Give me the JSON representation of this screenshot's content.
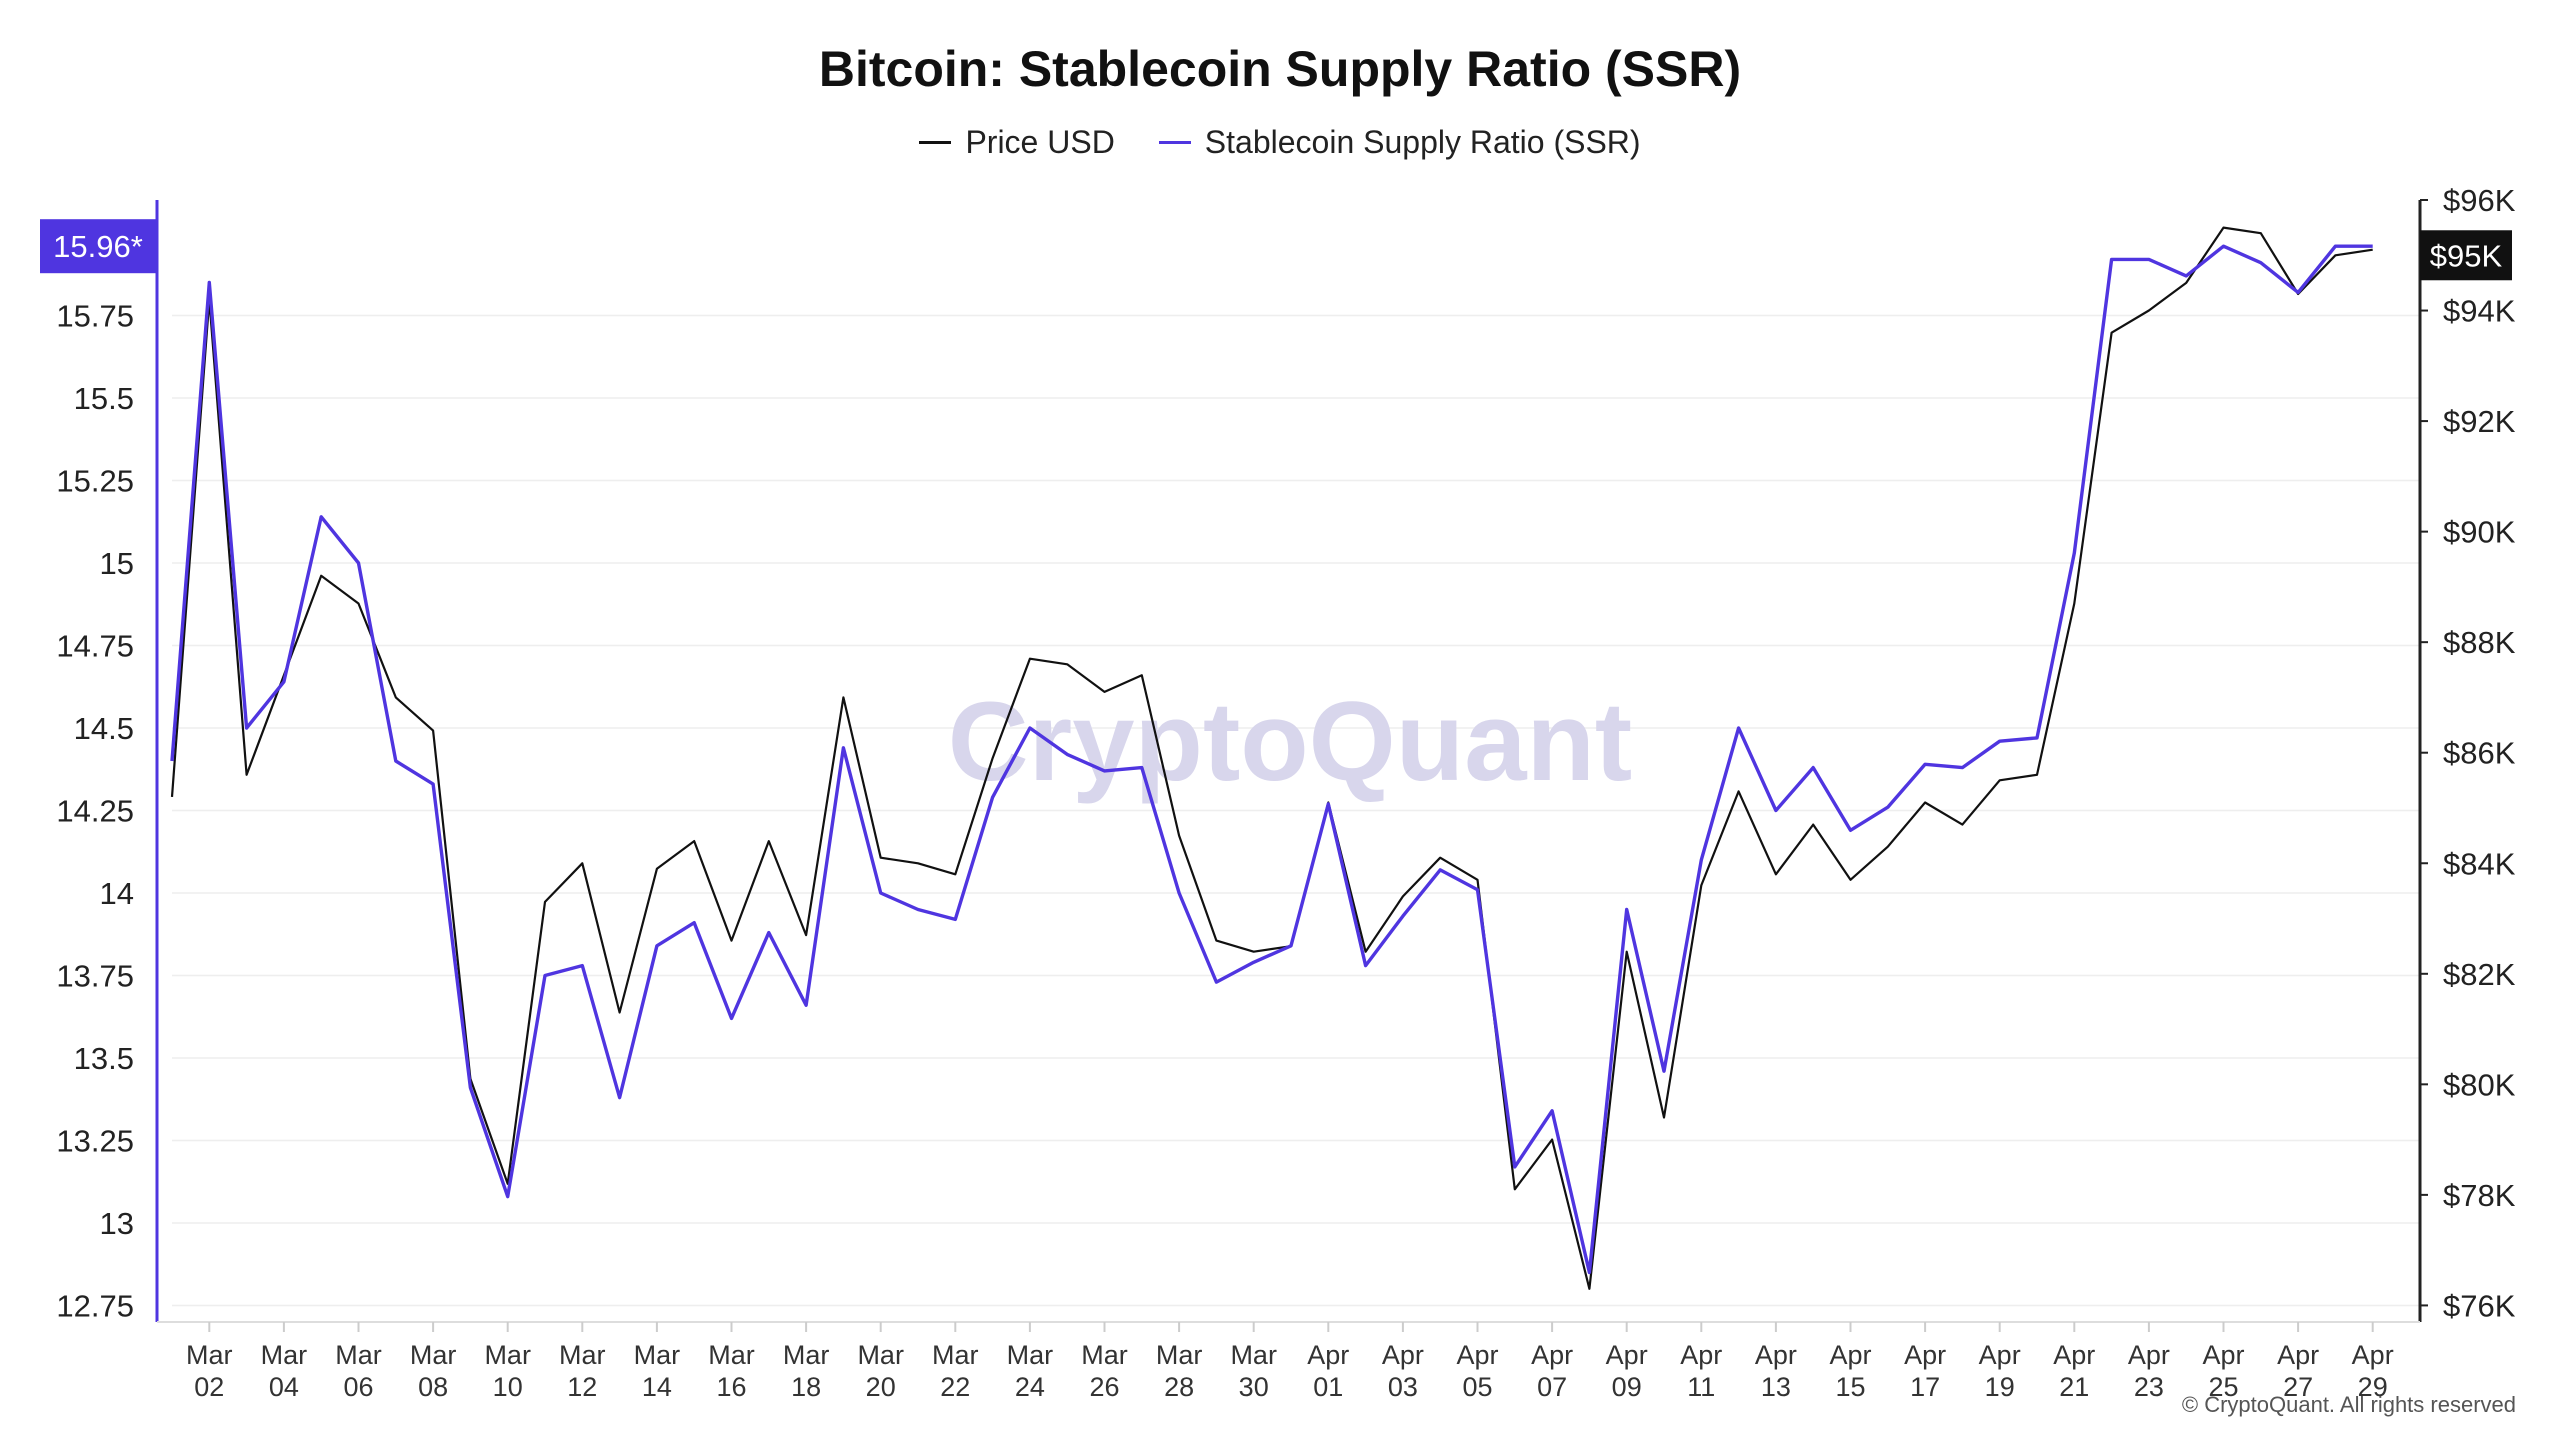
{
  "chart_data": {
    "type": "line",
    "title": "Bitcoin: Stablecoin Supply Ratio (SSR)",
    "x_tick_labels": [
      [
        "Mar",
        "02"
      ],
      [
        "Mar",
        "04"
      ],
      [
        "Mar",
        "06"
      ],
      [
        "Mar",
        "08"
      ],
      [
        "Mar",
        "10"
      ],
      [
        "Mar",
        "12"
      ],
      [
        "Mar",
        "14"
      ],
      [
        "Mar",
        "16"
      ],
      [
        "Mar",
        "18"
      ],
      [
        "Mar",
        "20"
      ],
      [
        "Mar",
        "22"
      ],
      [
        "Mar",
        "24"
      ],
      [
        "Mar",
        "26"
      ],
      [
        "Mar",
        "28"
      ],
      [
        "Mar",
        "30"
      ],
      [
        "Apr",
        "01"
      ],
      [
        "Apr",
        "03"
      ],
      [
        "Apr",
        "05"
      ],
      [
        "Apr",
        "07"
      ],
      [
        "Apr",
        "09"
      ],
      [
        "Apr",
        "11"
      ],
      [
        "Apr",
        "13"
      ],
      [
        "Apr",
        "15"
      ],
      [
        "Apr",
        "17"
      ],
      [
        "Apr",
        "19"
      ],
      [
        "Apr",
        "21"
      ],
      [
        "Apr",
        "23"
      ],
      [
        "Apr",
        "25"
      ],
      [
        "Apr",
        "27"
      ],
      [
        "Apr",
        "29"
      ]
    ],
    "x_start": "Mar 01",
    "x": [
      "Mar 01",
      "Mar 02",
      "Mar 03",
      "Mar 04",
      "Mar 05",
      "Mar 06",
      "Mar 07",
      "Mar 08",
      "Mar 09",
      "Mar 10",
      "Mar 11",
      "Mar 12",
      "Mar 13",
      "Mar 14",
      "Mar 15",
      "Mar 16",
      "Mar 17",
      "Mar 18",
      "Mar 19",
      "Mar 20",
      "Mar 21",
      "Mar 22",
      "Mar 23",
      "Mar 24",
      "Mar 25",
      "Mar 26",
      "Mar 27",
      "Mar 28",
      "Mar 29",
      "Mar 30",
      "Mar 31",
      "Apr 01",
      "Apr 02",
      "Apr 03",
      "Apr 04",
      "Apr 05",
      "Apr 06",
      "Apr 07",
      "Apr 08",
      "Apr 09",
      "Apr 10",
      "Apr 11",
      "Apr 12",
      "Apr 13",
      "Apr 14",
      "Apr 15",
      "Apr 16",
      "Apr 17",
      "Apr 18",
      "Apr 19",
      "Apr 20",
      "Apr 21",
      "Apr 22",
      "Apr 23",
      "Apr 24",
      "Apr 25",
      "Apr 26",
      "Apr 27",
      "Apr 28",
      "Apr 29"
    ],
    "left_axis": {
      "ticks": [
        "12.75",
        "13",
        "13.25",
        "13.5",
        "13.75",
        "14",
        "14.25",
        "14.5",
        "14.75",
        "15",
        "15.25",
        "15.5",
        "15.75"
      ],
      "ylim": [
        12.7,
        16.1
      ],
      "current_value_label": "15.96*",
      "current_value": 15.96
    },
    "right_axis": {
      "ticks": [
        "$76K",
        "$78K",
        "$80K",
        "$82K",
        "$84K",
        "$86K",
        "$88K",
        "$90K",
        "$92K",
        "$94K",
        "$96K"
      ],
      "tick_values": [
        76000,
        78000,
        80000,
        82000,
        84000,
        86000,
        88000,
        90000,
        92000,
        94000,
        96000
      ],
      "ylim": [
        75700,
        96000
      ],
      "current_value_label": "$95K",
      "current_value": 95000
    },
    "series": [
      {
        "name": "Price USD",
        "axis": "right",
        "color": "#111111",
        "values": [
          85200,
          94200,
          85600,
          87400,
          89200,
          88700,
          87000,
          86400,
          80100,
          78200,
          83300,
          84000,
          81300,
          83900,
          84400,
          82600,
          84400,
          82700,
          87000,
          84100,
          84000,
          83800,
          85900,
          87700,
          87600,
          87100,
          87400,
          84500,
          82600,
          82400,
          82500,
          85100,
          82400,
          83400,
          84100,
          83700,
          78100,
          79000,
          76300,
          82400,
          79400,
          83600,
          85300,
          83800,
          84700,
          83700,
          84300,
          85100,
          84700,
          85500,
          85600,
          88700,
          93600,
          94000,
          94500,
          95500,
          95400,
          94300,
          95000,
          95100
        ]
      },
      {
        "name": "Stablecoin Supply Ratio (SSR)",
        "axis": "left",
        "color": "#4f35e0",
        "values": [
          14.4,
          15.85,
          14.5,
          14.64,
          15.14,
          15.0,
          14.4,
          14.33,
          13.41,
          13.08,
          13.75,
          13.78,
          13.38,
          13.84,
          13.91,
          13.62,
          13.88,
          13.66,
          14.44,
          14.0,
          13.95,
          13.92,
          14.29,
          14.5,
          14.42,
          14.37,
          14.38,
          14.0,
          13.73,
          13.79,
          13.84,
          14.27,
          13.78,
          13.93,
          14.07,
          14.01,
          13.17,
          13.34,
          12.85,
          13.95,
          13.46,
          14.1,
          14.5,
          14.25,
          14.38,
          14.19,
          14.26,
          14.39,
          14.38,
          14.46,
          14.47,
          15.03,
          15.92,
          15.92,
          15.87,
          15.96,
          15.91,
          15.82,
          15.96,
          15.96
        ]
      }
    ],
    "legend_position": "top-center",
    "grid": true,
    "watermark": "CryptoQuant",
    "copyright": "© CryptoQuant. All rights reserved"
  },
  "colors": {
    "price": "#111111",
    "ssr": "#4f35e0",
    "grid": "#eeeeee",
    "axis": "#dddddd"
  }
}
